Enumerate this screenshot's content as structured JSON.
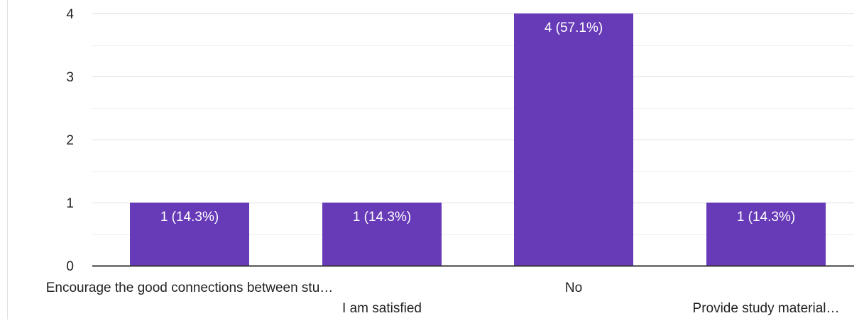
{
  "chart_data": {
    "type": "bar",
    "categories": [
      "Encourage the good connections between stu…",
      "I am satisfied",
      "No",
      "Provide study material…"
    ],
    "values": [
      1,
      1,
      4,
      1
    ],
    "data_labels": [
      "1 (14.3%)",
      "1 (14.3%)",
      "4 (57.1%)",
      "1 (14.3%)"
    ],
    "ylim": [
      0,
      4
    ],
    "yticks": [
      "0",
      "1",
      "2",
      "3",
      "4"
    ],
    "grid": true,
    "colors": {
      "bar": "#673ab7",
      "grid": "#e6e6e6",
      "axis": "#333333",
      "text": "#222222",
      "label_text": "#ffffff"
    }
  }
}
